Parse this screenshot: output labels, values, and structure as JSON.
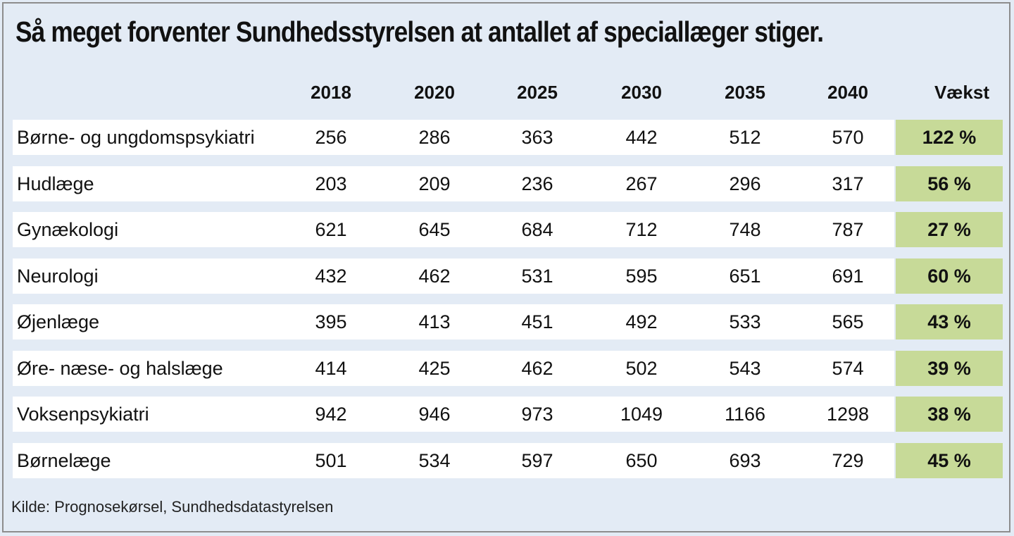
{
  "colors": {
    "background": "#e3ebf5",
    "row_background": "#ffffff",
    "growth_background": "#c7da98",
    "text": "#111111"
  },
  "chart_data": {
    "type": "table",
    "title": "Så meget forventer Sundhedsstyrelsen at antallet af speciallæger stiger.",
    "columns": [
      "2018",
      "2020",
      "2025",
      "2030",
      "2035",
      "2040"
    ],
    "growth_header": "Vækst",
    "rows": [
      {
        "label": "Børne- og ungdomspsykiatri",
        "values": [
          "256",
          "286",
          "363",
          "442",
          "512",
          "570"
        ],
        "growth": "122 %"
      },
      {
        "label": "Hudlæge",
        "values": [
          "203",
          "209",
          "236",
          "267",
          "296",
          "317"
        ],
        "growth": "56 %"
      },
      {
        "label": "Gynækologi",
        "values": [
          "621",
          "645",
          "684",
          "712",
          "748",
          "787"
        ],
        "growth": "27 %"
      },
      {
        "label": "Neurologi",
        "values": [
          "432",
          "462",
          "531",
          "595",
          "651",
          "691"
        ],
        "growth": "60 %"
      },
      {
        "label": "Øjenlæge",
        "values": [
          "395",
          "413",
          "451",
          "492",
          "533",
          "565"
        ],
        "growth": "43 %"
      },
      {
        "label": "Øre- næse- og halslæge",
        "values": [
          "414",
          "425",
          "462",
          "502",
          "543",
          "574"
        ],
        "growth": "39 %"
      },
      {
        "label": "Voksenpsykiatri",
        "values": [
          "942",
          "946",
          "973",
          "1049",
          "1166",
          "1298"
        ],
        "growth": "38 %"
      },
      {
        "label": "Børnelæge",
        "values": [
          "501",
          "534",
          "597",
          "650",
          "693",
          "729"
        ],
        "growth": "45 %"
      }
    ],
    "source": "Kilde: Prognosekørsel, Sundhedsdatastyrelsen"
  }
}
